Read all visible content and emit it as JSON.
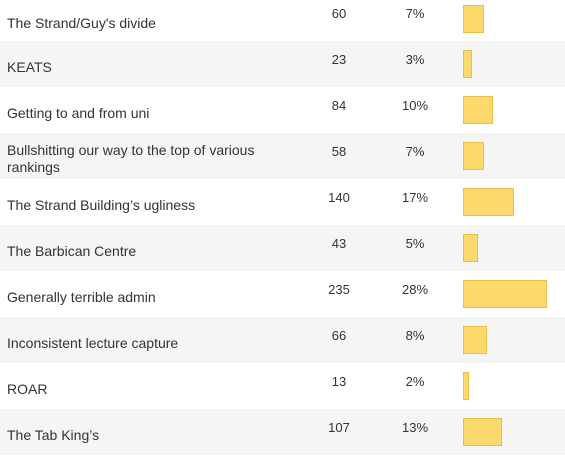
{
  "poll": {
    "options": [
      {
        "label": "The Strand/Guy's divide",
        "votes": "60",
        "percent": "7%",
        "share": 7
      },
      {
        "label": "KEATS",
        "votes": "23",
        "percent": "3%",
        "share": 3
      },
      {
        "label": "Getting to and from uni",
        "votes": "84",
        "percent": "10%",
        "share": 10
      },
      {
        "label": "Bullshitting our way to the top of various rankings",
        "votes": "58",
        "percent": "7%",
        "share": 7
      },
      {
        "label": "The Strand Building’s ugliness",
        "votes": "140",
        "percent": "17%",
        "share": 17
      },
      {
        "label": "The Barbican Centre",
        "votes": "43",
        "percent": "5%",
        "share": 5
      },
      {
        "label": "Generally terrible admin",
        "votes": "235",
        "percent": "28%",
        "share": 28
      },
      {
        "label": "Inconsistent lecture capture",
        "votes": "66",
        "percent": "8%",
        "share": 8
      },
      {
        "label": "ROAR",
        "votes": "13",
        "percent": "2%",
        "share": 2
      },
      {
        "label": "The Tab King’s",
        "votes": "107",
        "percent": "13%",
        "share": 13
      }
    ],
    "bar_color": "#fcd96d",
    "alt_row_color": "#f5f5f5"
  }
}
